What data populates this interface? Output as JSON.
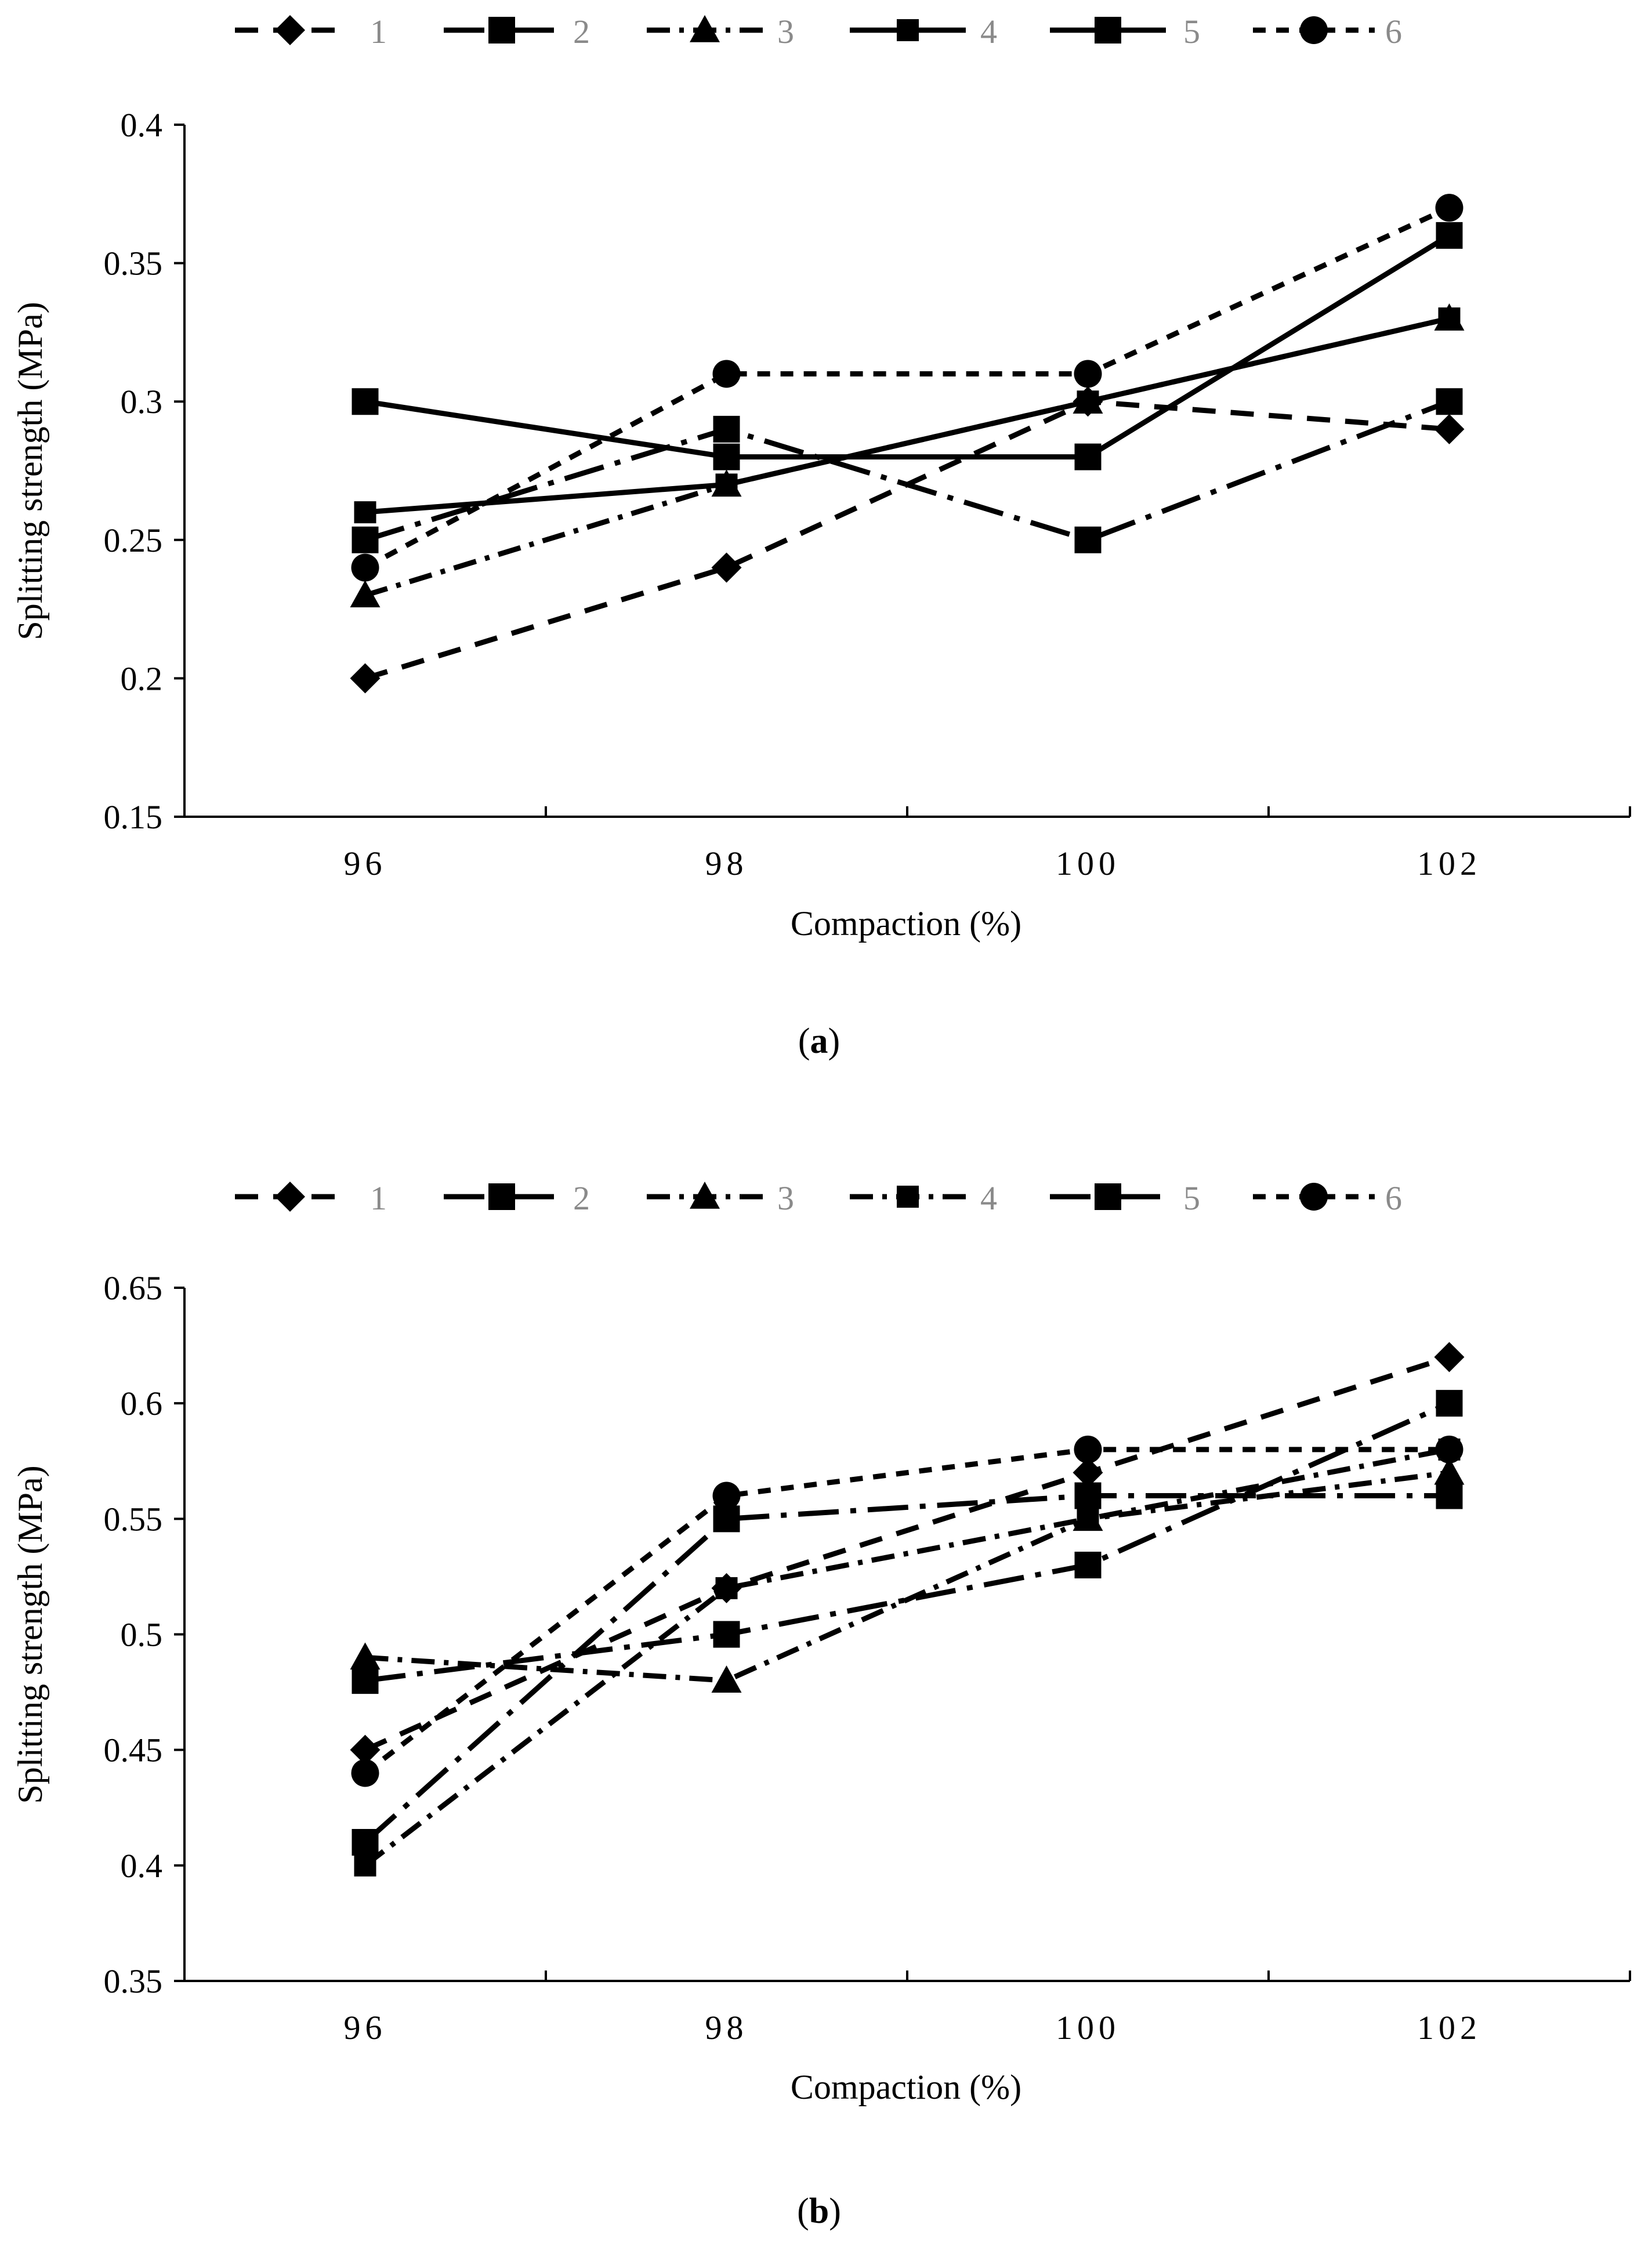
{
  "chart_data": [
    {
      "type": "line",
      "panel_label": {
        "open": "(",
        "letter": "a",
        "close": ")"
      },
      "xlabel": "Compaction (%)",
      "ylabel": "Splitting strength (MPa)",
      "categories": [
        "96",
        "98",
        "100",
        "102"
      ],
      "x": [
        96,
        98,
        100,
        102
      ],
      "xlim": [
        95,
        103
      ],
      "xticks": [
        95,
        97,
        99,
        101,
        103
      ],
      "ylim": [
        0.15,
        0.4
      ],
      "yticks": [
        0.15,
        0.2,
        0.25,
        0.3,
        0.35,
        0.4
      ],
      "ytick_labels": [
        "0.15",
        "0.2",
        "0.25",
        "0.3",
        "0.35",
        "0.4"
      ],
      "grid": false,
      "legend_position": "top",
      "series": [
        {
          "name": "1",
          "marker": "diamond",
          "dash": "dash",
          "values": [
            0.2,
            0.24,
            0.3,
            0.29
          ]
        },
        {
          "name": "2",
          "marker": "square",
          "dash": "longdashdot",
          "values": [
            0.25,
            0.29,
            0.25,
            0.3
          ]
        },
        {
          "name": "3",
          "marker": "triangle",
          "dash": "dashdot",
          "values": [
            0.23,
            0.27,
            0.3,
            0.33
          ]
        },
        {
          "name": "4",
          "marker": "square-small",
          "dash": "solid",
          "values": [
            0.26,
            0.27,
            0.3,
            0.33
          ]
        },
        {
          "name": "5",
          "marker": "square",
          "dash": "solid",
          "values": [
            0.3,
            0.28,
            0.28,
            0.36
          ]
        },
        {
          "name": "6",
          "marker": "circle",
          "dash": "shortdash",
          "values": [
            0.24,
            0.31,
            0.31,
            0.37
          ]
        }
      ]
    },
    {
      "type": "line",
      "panel_label": {
        "open": "(",
        "letter": "b",
        "close": ")"
      },
      "xlabel": "Compaction (%)",
      "ylabel": "Splitting strength (MPa)",
      "categories": [
        "96",
        "98",
        "100",
        "102"
      ],
      "x": [
        96,
        98,
        100,
        102
      ],
      "xlim": [
        95,
        103
      ],
      "xticks": [
        95,
        97,
        99,
        101,
        103
      ],
      "ylim": [
        0.35,
        0.65
      ],
      "yticks": [
        0.35,
        0.4,
        0.45,
        0.5,
        0.55,
        0.6,
        0.65
      ],
      "ytick_labels": [
        "0.35",
        "0.4",
        "0.45",
        "0.5",
        "0.55",
        "0.6",
        "0.65"
      ],
      "grid": false,
      "legend_position": "top",
      "series": [
        {
          "name": "1",
          "marker": "diamond",
          "dash": "dash",
          "values": [
            0.45,
            0.52,
            0.57,
            0.62
          ]
        },
        {
          "name": "2",
          "marker": "square",
          "dash": "longdashdot",
          "values": [
            0.41,
            0.55,
            0.56,
            0.56
          ]
        },
        {
          "name": "3",
          "marker": "triangle",
          "dash": "dashdot",
          "values": [
            0.49,
            0.48,
            0.55,
            0.57
          ]
        },
        {
          "name": "4",
          "marker": "square-small",
          "dash": "dashdot",
          "values": [
            0.4,
            0.52,
            0.55,
            0.58
          ]
        },
        {
          "name": "5",
          "marker": "square",
          "dash": "longdashdot",
          "values": [
            0.48,
            0.5,
            0.53,
            0.6
          ]
        },
        {
          "name": "6",
          "marker": "circle",
          "dash": "shortdash",
          "values": [
            0.44,
            0.56,
            0.58,
            0.58
          ]
        }
      ]
    }
  ]
}
